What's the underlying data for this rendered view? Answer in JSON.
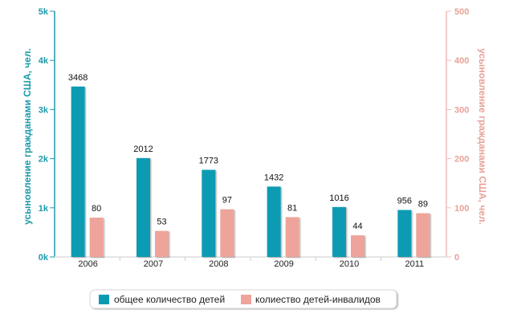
{
  "chart_data": {
    "type": "bar",
    "categories": [
      "2006",
      "2007",
      "2008",
      "2009",
      "2010",
      "2011"
    ],
    "series": [
      {
        "name": "общее количество детей",
        "axis": "left",
        "color": "#0a9bb3",
        "values": [
          3468,
          2012,
          1773,
          1432,
          1016,
          956
        ],
        "labels": [
          "3468",
          "2012",
          "1773",
          "1432",
          "1016",
          "956"
        ]
      },
      {
        "name": "колиество детей-инвалидов",
        "axis": "right",
        "color": "#eea49a",
        "values": [
          80,
          53,
          97,
          81,
          44,
          89
        ],
        "labels": [
          "80",
          "53",
          "97",
          "81",
          "44",
          "89"
        ]
      }
    ],
    "y_left": {
      "label": "усыновление гражданами США, чел.",
      "ylim": [
        0,
        5000
      ],
      "ticks": [
        0,
        1000,
        2000,
        3000,
        4000,
        5000
      ],
      "tick_labels": [
        "0k",
        "1k",
        "2k",
        "3k",
        "4k",
        "5k"
      ],
      "color": "#1b9aaa"
    },
    "y_right": {
      "label": "усыновление гражданами США, чел.",
      "ylim": [
        0,
        500
      ],
      "ticks": [
        0,
        100,
        200,
        300,
        400,
        500
      ],
      "tick_labels": [
        "0",
        "100",
        "200",
        "300",
        "400",
        "500"
      ],
      "color": "#e7a298"
    },
    "grid": false,
    "legend": "bottom-center"
  }
}
